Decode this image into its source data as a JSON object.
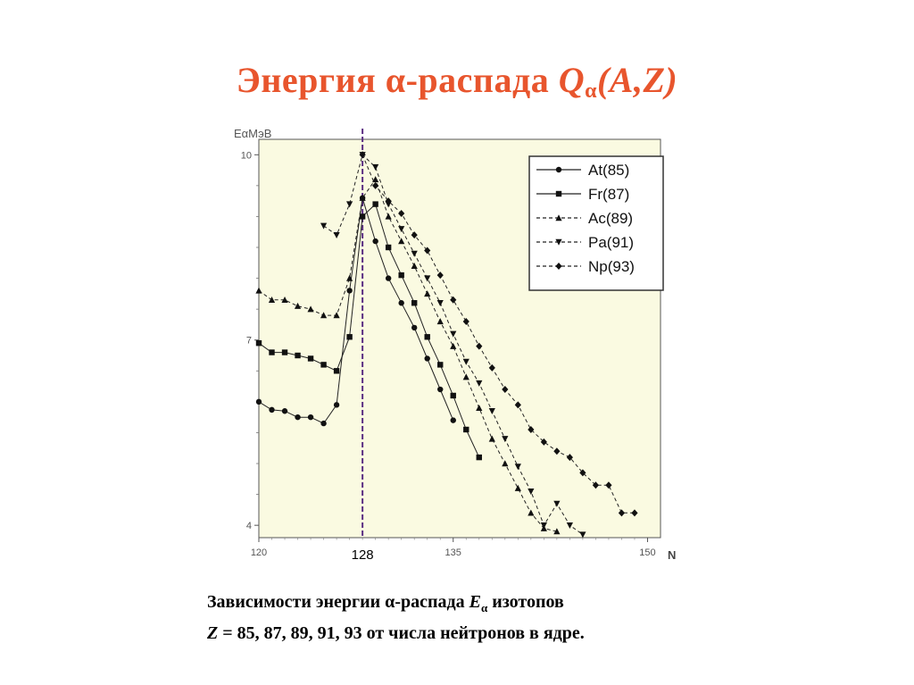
{
  "slide": {
    "title": {
      "main": "Энергия α-распада ",
      "q": "Q",
      "q_sub": "α",
      "args": "(A,Z)"
    },
    "caption": {
      "line1_pre": "Зависимости энергии α-распада ",
      "line1_e": "E",
      "line1_sub": "α",
      "line1_post": " изотопов",
      "line2_z": "Z",
      "line2_post": " = 85, 87, 89, 91, 93 от числа нейтронов в ядре."
    }
  },
  "chart_data": {
    "type": "line",
    "ylabel": "EαМэВ",
    "xlabel": "N",
    "xlim": [
      120,
      151
    ],
    "ylim": [
      3.8,
      10.25
    ],
    "x_ticks": [
      120,
      135,
      150
    ],
    "y_ticks": [
      4,
      7,
      10
    ],
    "marker_line": {
      "x": 128,
      "label": "128"
    },
    "plot_background": "#fafae1",
    "legend_position": "top-right",
    "series": [
      {
        "name": "At(85)",
        "marker": "circle",
        "dash": "solid",
        "x": [
          120,
          121,
          122,
          123,
          124,
          125,
          126,
          127,
          128,
          129,
          130,
          131,
          132,
          133,
          134,
          135
        ],
        "y": [
          6.0,
          5.87,
          5.85,
          5.75,
          5.75,
          5.65,
          5.95,
          7.8,
          9.3,
          8.6,
          8.0,
          7.6,
          7.2,
          6.7,
          6.2,
          5.7
        ]
      },
      {
        "name": "Fr(87)",
        "marker": "square",
        "dash": "solid",
        "x": [
          120,
          121,
          122,
          123,
          124,
          125,
          126,
          127,
          128,
          129,
          130,
          131,
          132,
          133,
          134,
          135,
          136,
          137
        ],
        "y": [
          6.95,
          6.8,
          6.8,
          6.75,
          6.7,
          6.6,
          6.5,
          7.05,
          9.0,
          9.2,
          8.5,
          8.05,
          7.6,
          7.05,
          6.6,
          6.1,
          5.55,
          5.1
        ]
      },
      {
        "name": "Ac(89)",
        "marker": "triangle-up",
        "dash": "dashed",
        "x": [
          120,
          121,
          122,
          123,
          124,
          125,
          126,
          127,
          128,
          129,
          130,
          131,
          132,
          133,
          134,
          135,
          136,
          137,
          138,
          139,
          140,
          141,
          142,
          143
        ],
        "y": [
          7.8,
          7.65,
          7.65,
          7.55,
          7.5,
          7.4,
          7.4,
          8.0,
          9.3,
          9.6,
          9.0,
          8.6,
          8.2,
          7.75,
          7.3,
          6.9,
          6.4,
          5.9,
          5.4,
          5.0,
          4.6,
          4.2,
          3.95,
          3.9
        ]
      },
      {
        "name": "Pa(91)",
        "marker": "triangle-down",
        "dash": "dashed",
        "x": [
          125,
          126,
          127,
          128,
          129,
          130,
          131,
          132,
          133,
          134,
          135,
          136,
          137,
          138,
          139,
          140,
          141,
          142,
          143,
          144,
          145
        ],
        "y": [
          8.85,
          8.7,
          9.2,
          10.0,
          9.8,
          9.2,
          8.8,
          8.4,
          8.0,
          7.6,
          7.1,
          6.65,
          6.3,
          5.85,
          5.4,
          4.95,
          4.55,
          4.0,
          4.35,
          4.0,
          3.85
        ]
      },
      {
        "name": "Np(93)",
        "marker": "diamond",
        "dash": "dashed",
        "x": [
          128,
          129,
          130,
          131,
          132,
          133,
          134,
          135,
          136,
          137,
          138,
          139,
          140,
          141,
          142,
          143,
          144,
          145,
          146,
          147,
          148,
          149
        ],
        "y": [
          10.0,
          9.5,
          9.25,
          9.05,
          8.7,
          8.45,
          8.05,
          7.65,
          7.3,
          6.9,
          6.55,
          6.2,
          5.95,
          5.55,
          5.35,
          5.2,
          5.1,
          4.85,
          4.65,
          4.65,
          4.2,
          4.2
        ]
      }
    ]
  }
}
